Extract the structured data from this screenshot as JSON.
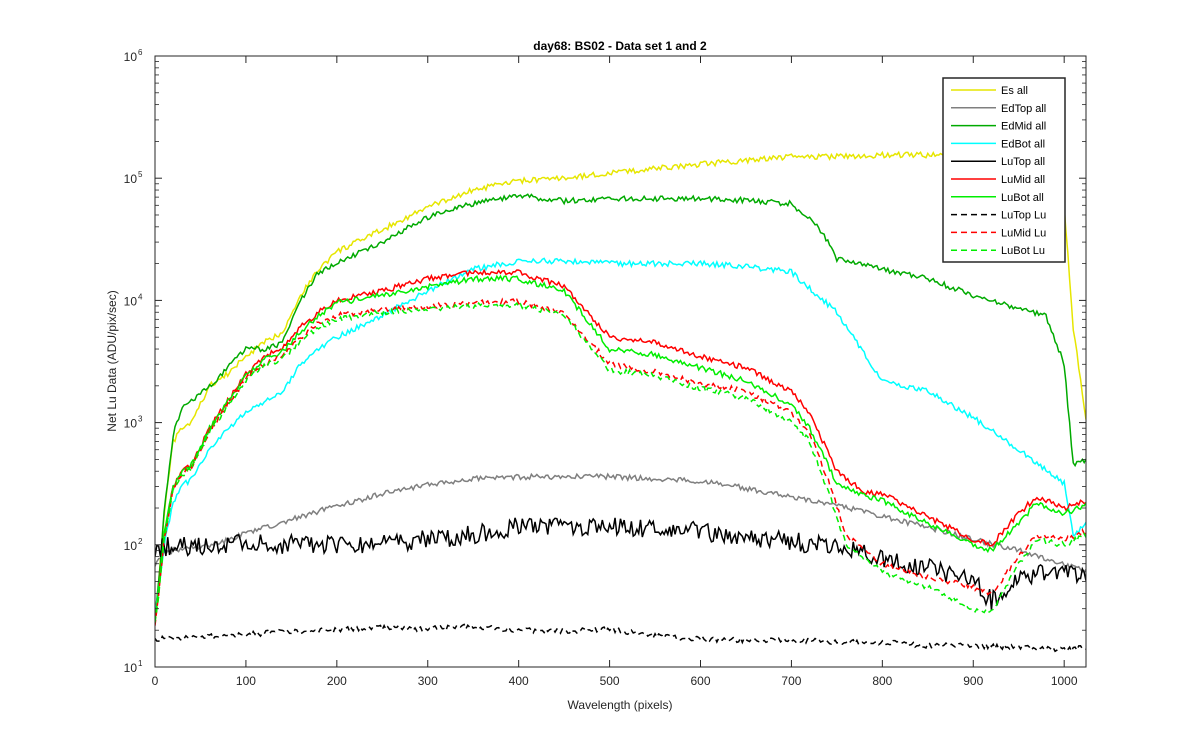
{
  "chart_data": {
    "type": "line",
    "title": "day68: BS02 - Data set 1 and 2",
    "xlabel": "Wavelength (pixels)",
    "ylabel": "Net Lu Data (ADU/pix/sec)",
    "xlim": [
      0,
      1024
    ],
    "ylim": [
      10,
      1000000
    ],
    "yscale": "log",
    "xticks": [
      0,
      100,
      200,
      300,
      400,
      500,
      600,
      700,
      800,
      900,
      1000
    ],
    "yticks": [
      {
        "base": "10",
        "exp": "1"
      },
      {
        "base": "10",
        "exp": "2"
      },
      {
        "base": "10",
        "exp": "3"
      },
      {
        "base": "10",
        "exp": "4"
      },
      {
        "base": "10",
        "exp": "5"
      },
      {
        "base": "10",
        "exp": "6"
      }
    ],
    "grid": false,
    "legend": "top-right",
    "series": [
      {
        "name": "Es  all",
        "color": "#e6e600",
        "dash": "solid",
        "x": [
          0,
          5,
          10,
          20,
          30,
          40,
          60,
          80,
          100,
          120,
          140,
          160,
          180,
          200,
          250,
          300,
          350,
          400,
          450,
          500,
          550,
          600,
          650,
          700,
          750,
          800,
          850,
          900,
          950,
          980,
          1000,
          1010,
          1024
        ],
        "y": [
          25,
          60,
          180,
          700,
          900,
          1000,
          2000,
          2500,
          3500,
          4500,
          5500,
          11000,
          18000,
          25000,
          38000,
          58000,
          80000,
          95000,
          100000,
          110000,
          120000,
          130000,
          140000,
          150000,
          150000,
          155000,
          155000,
          150000,
          145000,
          140000,
          60000,
          6000,
          1100
        ]
      },
      {
        "name": "EdTop  all",
        "color": "#7f7f7f",
        "dash": "solid",
        "x": [
          0,
          5,
          10,
          20,
          40,
          60,
          80,
          100,
          150,
          200,
          250,
          300,
          350,
          400,
          450,
          500,
          550,
          600,
          650,
          700,
          750,
          800,
          850,
          900,
          950,
          1000,
          1024
        ],
        "y": [
          70,
          80,
          85,
          90,
          95,
          100,
          110,
          125,
          160,
          210,
          260,
          310,
          350,
          360,
          360,
          360,
          345,
          330,
          290,
          250,
          210,
          170,
          140,
          110,
          90,
          70,
          60
        ]
      },
      {
        "name": "EdMid  all",
        "color": "#00aa00",
        "dash": "solid",
        "x": [
          0,
          5,
          10,
          20,
          30,
          40,
          60,
          80,
          100,
          120,
          140,
          160,
          180,
          200,
          250,
          300,
          350,
          400,
          450,
          500,
          550,
          600,
          650,
          700,
          730,
          750,
          800,
          850,
          900,
          950,
          980,
          1000,
          1010,
          1024
        ],
        "y": [
          25,
          60,
          180,
          800,
          1300,
          1500,
          2000,
          2800,
          4000,
          4000,
          4500,
          10000,
          17000,
          20000,
          30000,
          48000,
          62000,
          72000,
          65000,
          68000,
          68000,
          68000,
          66000,
          62000,
          40000,
          22000,
          18000,
          15000,
          11000,
          8500,
          7500,
          3000,
          450,
          500
        ]
      },
      {
        "name": "EdBot  all",
        "color": "#00ffff",
        "dash": "solid",
        "x": [
          0,
          5,
          10,
          20,
          30,
          40,
          60,
          80,
          100,
          120,
          140,
          160,
          180,
          200,
          250,
          300,
          350,
          400,
          450,
          500,
          550,
          600,
          650,
          700,
          750,
          800,
          850,
          900,
          950,
          1000,
          1010,
          1024
        ],
        "y": [
          25,
          50,
          100,
          220,
          300,
          350,
          600,
          900,
          1200,
          1500,
          1800,
          3000,
          4000,
          5000,
          7500,
          12000,
          18000,
          21000,
          21000,
          20000,
          20000,
          20000,
          19000,
          17000,
          8000,
          2200,
          1800,
          1100,
          600,
          320,
          120,
          150
        ]
      },
      {
        "name": "LuTop  all",
        "color": "#000000",
        "dash": "solid",
        "x": [
          0,
          50,
          100,
          150,
          200,
          250,
          300,
          350,
          400,
          450,
          500,
          550,
          600,
          650,
          700,
          750,
          800,
          850,
          900,
          920,
          950,
          1000,
          1024
        ],
        "y": [
          95,
          100,
          105,
          100,
          100,
          105,
          110,
          120,
          140,
          145,
          140,
          135,
          130,
          115,
          105,
          100,
          75,
          65,
          50,
          35,
          55,
          60,
          55
        ]
      },
      {
        "name": "LuMid  all",
        "color": "#ff0000",
        "dash": "solid",
        "x": [
          0,
          5,
          10,
          20,
          30,
          40,
          60,
          80,
          100,
          120,
          140,
          160,
          180,
          200,
          250,
          300,
          350,
          400,
          450,
          500,
          550,
          600,
          650,
          700,
          720,
          750,
          780,
          800,
          850,
          900,
          920,
          950,
          970,
          1000,
          1024
        ],
        "y": [
          25,
          50,
          120,
          300,
          400,
          450,
          900,
          1500,
          2500,
          3500,
          4000,
          6000,
          8000,
          10000,
          12000,
          15000,
          17000,
          17000,
          13000,
          5000,
          4500,
          3500,
          2800,
          1800,
          1200,
          400,
          270,
          260,
          170,
          110,
          100,
          180,
          250,
          200,
          230
        ]
      },
      {
        "name": "LuBot  all",
        "color": "#00ee00",
        "dash": "solid",
        "x": [
          0,
          5,
          10,
          20,
          30,
          40,
          60,
          80,
          100,
          120,
          140,
          160,
          180,
          200,
          250,
          300,
          350,
          400,
          450,
          500,
          550,
          600,
          650,
          700,
          720,
          750,
          780,
          800,
          850,
          900,
          920,
          950,
          970,
          1000,
          1024
        ],
        "y": [
          25,
          50,
          120,
          300,
          400,
          450,
          900,
          1500,
          2400,
          3300,
          3800,
          5500,
          7500,
          9500,
          11000,
          13000,
          15000,
          15000,
          12000,
          4000,
          3600,
          2800,
          2200,
          1400,
          900,
          320,
          250,
          230,
          150,
          100,
          90,
          150,
          220,
          180,
          210
        ]
      },
      {
        "name": "LuTop  Lu",
        "color": "#000000",
        "dash": "dashed",
        "x": [
          0,
          50,
          100,
          150,
          200,
          250,
          300,
          350,
          400,
          450,
          500,
          550,
          600,
          650,
          700,
          750,
          800,
          850,
          900,
          950,
          1000,
          1024
        ],
        "y": [
          17,
          17.5,
          18.5,
          19.5,
          20,
          21,
          20.5,
          21.5,
          20,
          19.5,
          20.5,
          18,
          17,
          16.5,
          16.5,
          16,
          16,
          15,
          15,
          14.5,
          14,
          14.5
        ]
      },
      {
        "name": "LuMid  Lu",
        "color": "#ff0000",
        "dash": "dashed",
        "x": [
          0,
          5,
          10,
          20,
          30,
          40,
          60,
          80,
          100,
          120,
          140,
          160,
          180,
          200,
          250,
          300,
          350,
          400,
          450,
          500,
          550,
          600,
          650,
          700,
          720,
          740,
          760,
          800,
          850,
          900,
          920,
          950,
          970,
          1000,
          1024
        ],
        "y": [
          22,
          45,
          110,
          280,
          380,
          420,
          850,
          1400,
          2300,
          3000,
          3500,
          5000,
          6500,
          7500,
          8500,
          9000,
          9500,
          9800,
          8000,
          3000,
          2600,
          2100,
          1800,
          1200,
          800,
          350,
          120,
          70,
          55,
          45,
          40,
          80,
          120,
          110,
          130
        ]
      },
      {
        "name": "LuBot  Lu",
        "color": "#00ee00",
        "dash": "dashed",
        "x": [
          0,
          5,
          10,
          20,
          30,
          40,
          60,
          80,
          100,
          120,
          140,
          160,
          180,
          200,
          250,
          300,
          350,
          400,
          450,
          500,
          550,
          600,
          650,
          700,
          720,
          740,
          760,
          800,
          850,
          900,
          920,
          950,
          970,
          1000,
          1024
        ],
        "y": [
          22,
          45,
          110,
          280,
          380,
          420,
          850,
          1350,
          2200,
          2900,
          3300,
          4700,
          6000,
          7000,
          8000,
          8500,
          9000,
          9200,
          7500,
          2700,
          2400,
          1900,
          1600,
          1000,
          700,
          280,
          100,
          60,
          45,
          30,
          28,
          70,
          110,
          100,
          120
        ]
      }
    ]
  }
}
